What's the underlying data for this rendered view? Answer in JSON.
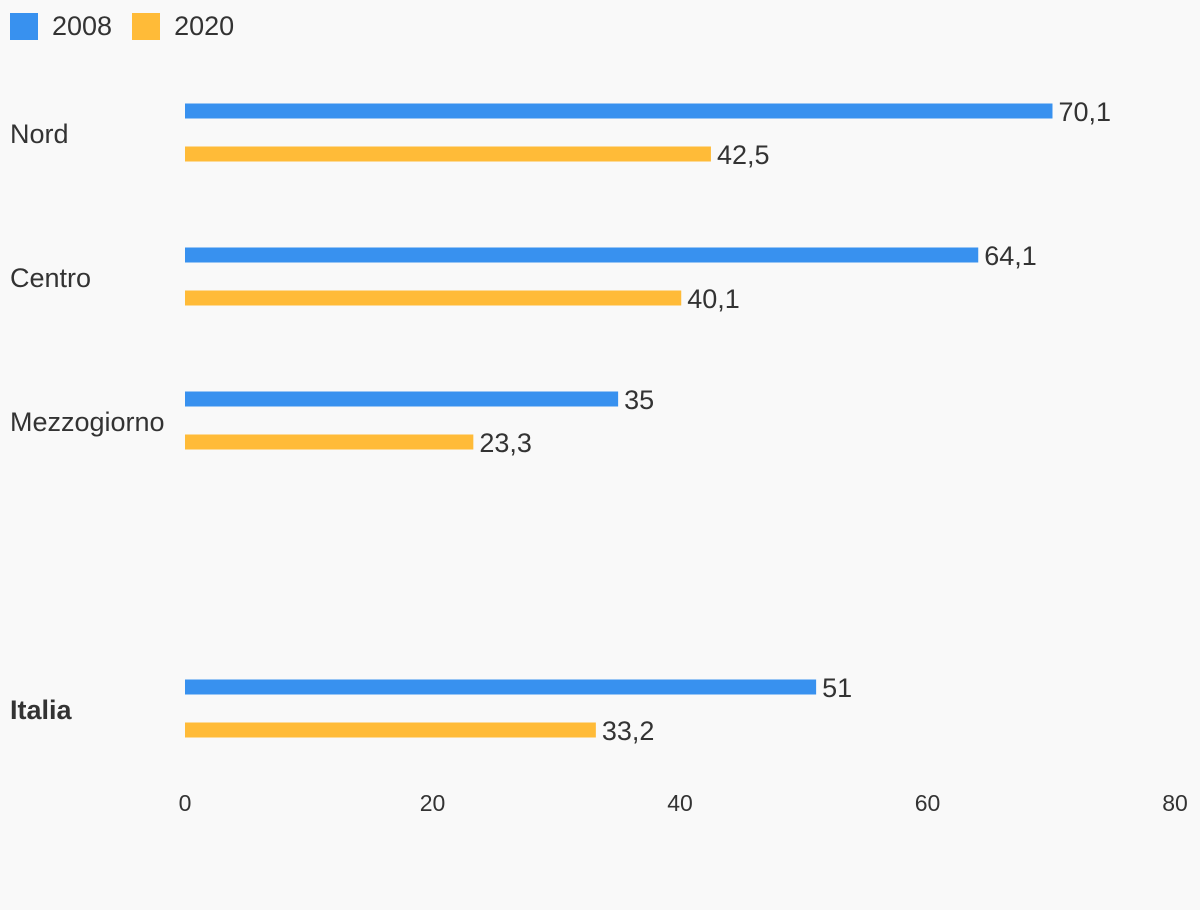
{
  "chart_data": {
    "type": "bar",
    "orientation": "horizontal",
    "categories": [
      "Nord",
      "Centro",
      "Mezzogiorno",
      "Italia"
    ],
    "category_bold": [
      false,
      false,
      false,
      true
    ],
    "series": [
      {
        "name": "2008",
        "color": "#3891ef",
        "values": [
          70.1,
          64.1,
          35,
          51
        ],
        "value_labels": [
          "70,1",
          "64,1",
          "35",
          "51"
        ]
      },
      {
        "name": "2020",
        "color": "#ffbb38",
        "values": [
          42.5,
          40.1,
          23.3,
          33.2
        ],
        "value_labels": [
          "42,5",
          "40,1",
          "23,3",
          "33,2"
        ]
      }
    ],
    "xlim": [
      0,
      80
    ],
    "xticks": [
      "0",
      "20",
      "40",
      "60",
      "80"
    ],
    "xtick_values": [
      0,
      20,
      40,
      60,
      80
    ],
    "legend_position": "top-left",
    "grid": false
  }
}
